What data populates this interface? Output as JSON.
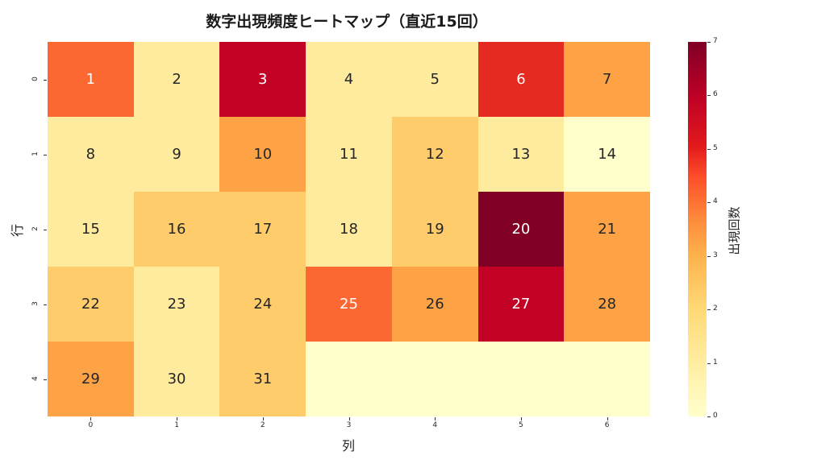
{
  "title": "数字出現頻度ヒートマップ（直近15回）",
  "xlabel": "列",
  "ylabel": "行",
  "colorbar": {
    "label": "出現回数",
    "ticks": [
      "0",
      "1",
      "2",
      "3",
      "4",
      "5",
      "6",
      "7"
    ]
  },
  "xticks": [
    "0",
    "1",
    "2",
    "3",
    "4",
    "5",
    "6"
  ],
  "yticks": [
    "0",
    "1",
    "2",
    "3",
    "4"
  ],
  "cells": [
    {
      "label": "1",
      "value": 4
    },
    {
      "label": "2",
      "value": 1
    },
    {
      "label": "3",
      "value": 6
    },
    {
      "label": "4",
      "value": 1
    },
    {
      "label": "5",
      "value": 1
    },
    {
      "label": "6",
      "value": 5
    },
    {
      "label": "7",
      "value": 3
    },
    {
      "label": "8",
      "value": 1
    },
    {
      "label": "9",
      "value": 1
    },
    {
      "label": "10",
      "value": 3
    },
    {
      "label": "11",
      "value": 1
    },
    {
      "label": "12",
      "value": 2
    },
    {
      "label": "13",
      "value": 1
    },
    {
      "label": "14",
      "value": 0
    },
    {
      "label": "15",
      "value": 1
    },
    {
      "label": "16",
      "value": 2
    },
    {
      "label": "17",
      "value": 2
    },
    {
      "label": "18",
      "value": 1
    },
    {
      "label": "19",
      "value": 2
    },
    {
      "label": "20",
      "value": 7
    },
    {
      "label": "21",
      "value": 3
    },
    {
      "label": "22",
      "value": 2
    },
    {
      "label": "23",
      "value": 1
    },
    {
      "label": "24",
      "value": 2
    },
    {
      "label": "25",
      "value": 4
    },
    {
      "label": "26",
      "value": 3
    },
    {
      "label": "27",
      "value": 6
    },
    {
      "label": "28",
      "value": 3
    },
    {
      "label": "29",
      "value": 3
    },
    {
      "label": "30",
      "value": 1
    },
    {
      "label": "31",
      "value": 2
    },
    {
      "label": "",
      "value": 0
    },
    {
      "label": "",
      "value": 0
    },
    {
      "label": "",
      "value": 0
    },
    {
      "label": "",
      "value": 0
    }
  ],
  "palette": {
    "0": "#ffffcc",
    "1": "#ffeb9e",
    "2": "#fecc6b",
    "3": "#fda245",
    "4": "#fc6832",
    "5": "#e52a21",
    "6": "#c30325",
    "7": "#800026"
  },
  "chart_data": {
    "type": "heatmap",
    "title": "数字出現頻度ヒートマップ（直近15回）",
    "xlabel": "列",
    "ylabel": "行",
    "x": [
      0,
      1,
      2,
      3,
      4,
      5,
      6
    ],
    "y": [
      0,
      1,
      2,
      3,
      4
    ],
    "annotations": [
      [
        1,
        2,
        3,
        4,
        5,
        6,
        7
      ],
      [
        8,
        9,
        10,
        11,
        12,
        13,
        14
      ],
      [
        15,
        16,
        17,
        18,
        19,
        20,
        21
      ],
      [
        22,
        23,
        24,
        25,
        26,
        27,
        28
      ],
      [
        29,
        30,
        31,
        null,
        null,
        null,
        null
      ]
    ],
    "values": [
      [
        4,
        1,
        6,
        1,
        1,
        5,
        3
      ],
      [
        1,
        1,
        3,
        1,
        2,
        1,
        0
      ],
      [
        1,
        2,
        2,
        1,
        2,
        7,
        3
      ],
      [
        2,
        1,
        2,
        4,
        3,
        6,
        3
      ],
      [
        3,
        1,
        2,
        0,
        0,
        0,
        0
      ]
    ],
    "colormap": "YlOrRd",
    "vmin": 0,
    "vmax": 7,
    "colorbar_label": "出現回数",
    "colorbar_ticks": [
      0,
      1,
      2,
      3,
      4,
      5,
      6,
      7
    ]
  }
}
